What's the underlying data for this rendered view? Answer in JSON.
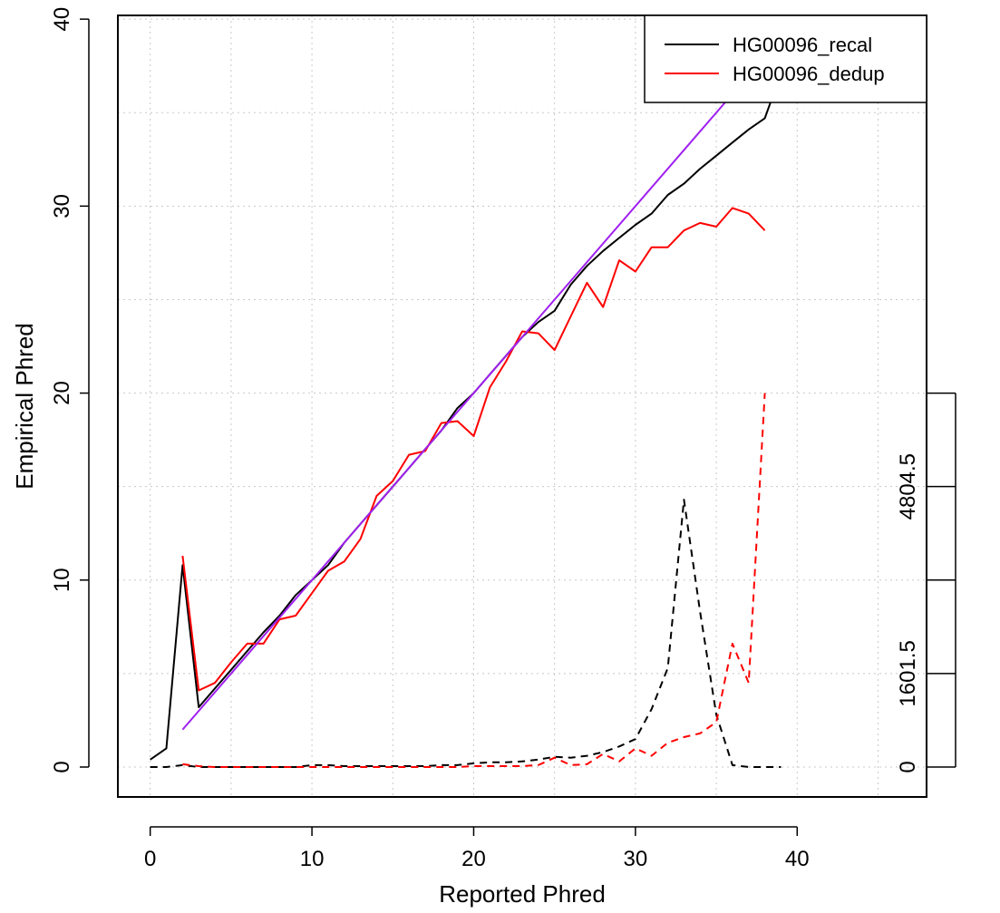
{
  "chart_data": {
    "type": "line",
    "xlabel": "Reported Phred",
    "ylabel": "Empirical Phred",
    "xlim": [
      -2,
      48
    ],
    "ylim": [
      -1.6,
      40.2
    ],
    "x_ticks": [
      0,
      10,
      20,
      30,
      40
    ],
    "y_ticks": [
      0,
      10,
      20,
      30,
      40
    ],
    "grid": true,
    "grid_x": [
      0,
      5,
      10,
      15,
      20,
      25,
      30,
      35,
      40,
      45
    ],
    "grid_y": [
      0,
      5,
      10,
      15,
      20,
      25,
      30,
      35,
      40
    ],
    "legend_position": "top-right",
    "right_axis": {
      "ticks": [
        {
          "y": 0,
          "label": "0"
        },
        {
          "y": 5,
          "label": "1601.5"
        },
        {
          "y": 10,
          "label": ""
        },
        {
          "y": 15,
          "label": "4804.5"
        },
        {
          "y": 20,
          "label": ""
        }
      ]
    },
    "reference_line": {
      "color": "#a020f0",
      "x": [
        2,
        38
      ],
      "y": [
        2,
        38
      ]
    },
    "series": [
      {
        "name": "HG00096_recal",
        "color": "#000000",
        "style": "solid",
        "x": [
          0,
          1,
          2,
          3,
          4,
          5,
          6,
          7,
          8,
          9,
          10,
          11,
          12,
          13,
          14,
          15,
          16,
          17,
          18,
          19,
          20,
          21,
          22,
          23,
          24,
          25,
          26,
          27,
          28,
          29,
          30,
          31,
          32,
          33,
          34,
          35,
          36,
          37,
          38,
          39
        ],
        "y": [
          0.4,
          1.0,
          10.8,
          3.2,
          4.2,
          5.2,
          6.2,
          7.2,
          8.1,
          9.2,
          10.0,
          10.8,
          12.0,
          13.0,
          14.0,
          15.0,
          16.0,
          17.0,
          18.0,
          19.2,
          20.0,
          21.0,
          22.0,
          23.0,
          23.8,
          24.4,
          25.8,
          26.8,
          27.6,
          28.3,
          29.0,
          29.6,
          30.6,
          31.2,
          32.0,
          32.7,
          33.4,
          34.1,
          34.7,
          37.1
        ]
      },
      {
        "name": "HG00096_dedup",
        "color": "#ff0000",
        "style": "solid",
        "x": [
          2,
          3,
          4,
          5,
          6,
          7,
          8,
          9,
          10,
          11,
          12,
          13,
          14,
          15,
          16,
          17,
          18,
          19,
          20,
          21,
          22,
          23,
          24,
          25,
          26,
          27,
          28,
          29,
          30,
          31,
          32,
          33,
          34,
          35,
          36,
          37,
          38
        ],
        "y": [
          11.3,
          4.1,
          4.5,
          5.6,
          6.6,
          6.6,
          7.9,
          8.1,
          9.3,
          10.5,
          11.0,
          12.2,
          14.5,
          15.3,
          16.7,
          16.9,
          18.4,
          18.5,
          17.7,
          20.3,
          21.7,
          23.3,
          23.2,
          22.3,
          24.1,
          25.9,
          24.6,
          27.1,
          26.5,
          27.8,
          27.8,
          28.7,
          29.1,
          28.9,
          29.9,
          29.6,
          28.7
        ]
      },
      {
        "name": "",
        "color": "#000000",
        "style": "dashed",
        "x": [
          0,
          1,
          2,
          3,
          4,
          5,
          6,
          7,
          8,
          9,
          10,
          11,
          12,
          13,
          14,
          15,
          16,
          17,
          18,
          19,
          20,
          21,
          22,
          23,
          24,
          25,
          26,
          27,
          28,
          29,
          30,
          31,
          32,
          33,
          34,
          35,
          36,
          37,
          38,
          39
        ],
        "y": [
          0,
          0,
          0.1,
          0,
          0,
          0,
          0,
          0,
          0,
          0,
          0.1,
          0.1,
          0.05,
          0.05,
          0.05,
          0.05,
          0.05,
          0.05,
          0.1,
          0.1,
          0.2,
          0.25,
          0.25,
          0.3,
          0.4,
          0.55,
          0.5,
          0.6,
          0.8,
          1.1,
          1.5,
          3.1,
          5.3,
          14.3,
          8.3,
          2.8,
          0.1,
          0,
          0,
          0
        ]
      },
      {
        "name": "",
        "color": "#ff0000",
        "style": "dashed",
        "x": [
          2,
          3,
          4,
          5,
          6,
          7,
          8,
          9,
          10,
          11,
          12,
          13,
          14,
          15,
          16,
          17,
          18,
          19,
          20,
          21,
          22,
          23,
          24,
          25,
          26,
          27,
          28,
          29,
          30,
          31,
          32,
          33,
          34,
          35,
          36,
          37,
          38
        ],
        "y": [
          0.15,
          0.05,
          0,
          0,
          0,
          0,
          0,
          0,
          0,
          0,
          0,
          0,
          0,
          0,
          0,
          0,
          0,
          0,
          0.05,
          0.05,
          0.05,
          0.05,
          0.1,
          0.5,
          0.1,
          0.15,
          0.7,
          0.3,
          1.0,
          0.6,
          1.3,
          1.6,
          1.8,
          2.4,
          6.6,
          4.5,
          20.0
        ]
      }
    ]
  }
}
